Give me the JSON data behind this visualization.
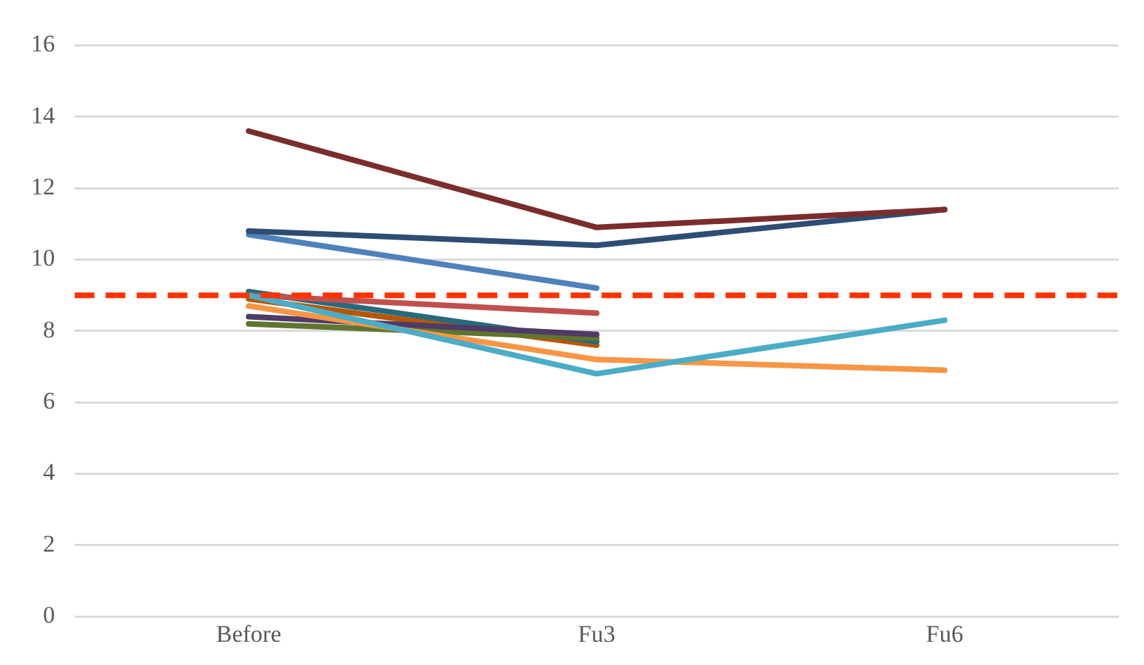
{
  "chart_data": {
    "type": "line",
    "categories": [
      "Before",
      "Fu3",
      "Fu6"
    ],
    "series": [
      {
        "color": "#7b2c2c",
        "values": [
          13.6,
          10.9,
          11.4
        ]
      },
      {
        "color": "#2e4d75",
        "values": [
          10.8,
          10.4,
          11.4
        ]
      },
      {
        "color": "#4f81bd",
        "values": [
          10.7,
          9.2,
          null
        ]
      },
      {
        "color": "#4bacc6",
        "values": [
          9.0,
          6.8,
          8.3
        ]
      },
      {
        "color": "#f79646",
        "values": [
          8.7,
          7.2,
          6.9
        ]
      },
      {
        "color": "#c0504d",
        "values": [
          9.0,
          8.5,
          null
        ]
      },
      {
        "color": "#4f3b66",
        "values": [
          8.4,
          7.9,
          null
        ]
      },
      {
        "color": "#5f7530",
        "values": [
          8.2,
          7.8,
          null
        ]
      },
      {
        "color": "#276a7c",
        "values": [
          9.1,
          7.7,
          null
        ]
      },
      {
        "color": "#b65708",
        "values": [
          8.9,
          7.6,
          null
        ]
      }
    ],
    "ylim": [
      0,
      16
    ],
    "yticks": [
      0,
      2,
      4,
      6,
      8,
      10,
      12,
      14,
      16
    ],
    "grid": "y",
    "legend": false,
    "marker": "none",
    "line_style": "solid",
    "ref_lines": [
      {
        "axis": "y",
        "value": 9,
        "color": "#ff3300",
        "line_style": "dashed"
      }
    ]
  }
}
